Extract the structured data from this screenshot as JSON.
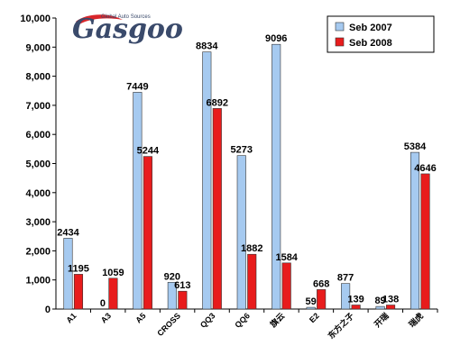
{
  "logo": {
    "wordmark": "Gasgoo",
    "tagline": "Global Auto Sources",
    "colors": {
      "word": "#3a4a6b",
      "swoosh": "#d9262b"
    }
  },
  "chart_data": {
    "type": "bar",
    "title": "",
    "xlabel": "",
    "ylabel": "",
    "ylim": [
      0,
      10000
    ],
    "yticks": [
      0,
      1000,
      2000,
      3000,
      4000,
      5000,
      6000,
      7000,
      8000,
      9000,
      10000
    ],
    "ytick_labels": [
      "0",
      "1,000",
      "2,000",
      "3,000",
      "4,000",
      "5,000",
      "6,000",
      "7,000",
      "8,000",
      "9,000",
      "10,000"
    ],
    "grid": false,
    "legend_position": "top-right",
    "categories": [
      "A1",
      "A3",
      "A5",
      "CROSS",
      "QQ3",
      "QQ6",
      "旗云",
      "E2",
      "东方之子",
      "开瑞",
      "瑞虎"
    ],
    "series": [
      {
        "name": "Seb 2007",
        "color": "#a6caf0",
        "values": [
          2434,
          0,
          7449,
          920,
          8834,
          5273,
          9096,
          59,
          877,
          89,
          5384
        ],
        "labels": [
          "2434",
          "0",
          "7449",
          "920",
          "8834",
          "5273",
          "9096",
          "59",
          "877",
          "89",
          "5384"
        ]
      },
      {
        "name": "Seb 2008",
        "color": "#e81c1c",
        "values": [
          1195,
          1059,
          5244,
          613,
          6892,
          1882,
          1584,
          668,
          139,
          138,
          4646
        ],
        "labels": [
          "1195",
          "1059",
          "5244",
          "613",
          "6892",
          "1882",
          "1584",
          "668",
          "139",
          "138",
          "4646"
        ]
      }
    ]
  }
}
